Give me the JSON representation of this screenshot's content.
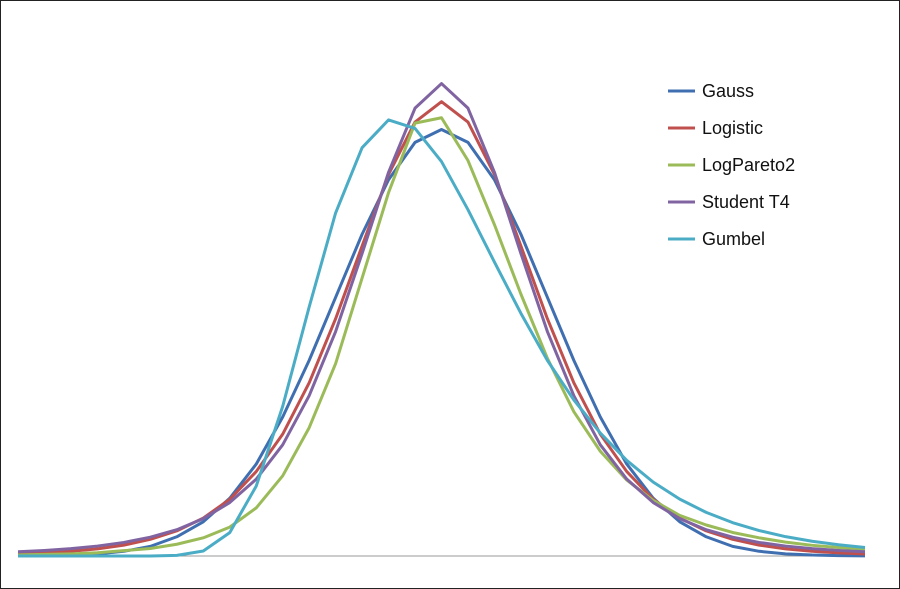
{
  "chart_data": {
    "type": "line",
    "x": [
      -4,
      -3.75,
      -3.5,
      -3.25,
      -3,
      -2.75,
      -2.5,
      -2.25,
      -2,
      -1.75,
      -1.5,
      -1.25,
      -1,
      -0.75,
      -0.5,
      -0.25,
      0,
      0.25,
      0.5,
      0.75,
      1,
      1.25,
      1.5,
      1.75,
      2,
      2.25,
      2.5,
      2.75,
      3,
      3.25,
      3.5,
      3.75,
      4
    ],
    "xlim": [
      -4,
      4
    ],
    "ylim": [
      0,
      0.45
    ],
    "legend": "upper right",
    "series": [
      {
        "name": "Gauss",
        "color": "#3f6fb0",
        "values": [
          0.0001,
          0.0004,
          0.0009,
          0.002,
          0.0044,
          0.009,
          0.018,
          0.032,
          0.054,
          0.086,
          0.13,
          0.183,
          0.242,
          0.301,
          0.352,
          0.387,
          0.399,
          0.387,
          0.352,
          0.301,
          0.242,
          0.183,
          0.13,
          0.086,
          0.054,
          0.032,
          0.018,
          0.009,
          0.0044,
          0.002,
          0.0009,
          0.0004,
          0.0001
        ]
      },
      {
        "name": "Logistic",
        "color": "#c0504d",
        "values": [
          0.0019,
          0.0029,
          0.0044,
          0.0067,
          0.0102,
          0.0156,
          0.0235,
          0.0355,
          0.053,
          0.079,
          0.114,
          0.162,
          0.222,
          0.29,
          0.357,
          0.406,
          0.425,
          0.406,
          0.357,
          0.29,
          0.222,
          0.162,
          0.114,
          0.079,
          0.053,
          0.0355,
          0.0235,
          0.0156,
          0.0102,
          0.0067,
          0.0044,
          0.0029,
          0.0019
        ]
      },
      {
        "name": "LogPareto2",
        "color": "#9bbb59",
        "values": [
          0.001,
          0.0015,
          0.002,
          0.003,
          0.005,
          0.007,
          0.011,
          0.017,
          0.027,
          0.045,
          0.075,
          0.12,
          0.18,
          0.26,
          0.34,
          0.405,
          0.41,
          0.37,
          0.31,
          0.245,
          0.185,
          0.135,
          0.098,
          0.071,
          0.052,
          0.038,
          0.029,
          0.022,
          0.017,
          0.013,
          0.01,
          0.008,
          0.0065
        ]
      },
      {
        "name": "Student T4",
        "color": "#8064a2",
        "values": [
          0.004,
          0.0052,
          0.0069,
          0.0093,
          0.0127,
          0.0176,
          0.0246,
          0.035,
          0.05,
          0.0719,
          0.104,
          0.15,
          0.21,
          0.283,
          0.359,
          0.419,
          0.442,
          0.419,
          0.359,
          0.283,
          0.21,
          0.15,
          0.104,
          0.0719,
          0.05,
          0.035,
          0.0246,
          0.0176,
          0.0127,
          0.0093,
          0.0069,
          0.0052,
          0.004
        ]
      },
      {
        "name": "Gumbel",
        "color": "#4bacc6",
        "values": [
          0,
          0,
          0,
          0,
          0,
          0,
          0.0006,
          0.0047,
          0.0219,
          0.0654,
          0.14,
          0.233,
          0.321,
          0.382,
          0.408,
          0.4,
          0.369,
          0.324,
          0.275,
          0.227,
          0.183,
          0.146,
          0.115,
          0.0894,
          0.0691,
          0.0532,
          0.0408,
          0.0312,
          0.0238,
          0.0181,
          0.0138,
          0.0105,
          0.008
        ]
      }
    ]
  }
}
